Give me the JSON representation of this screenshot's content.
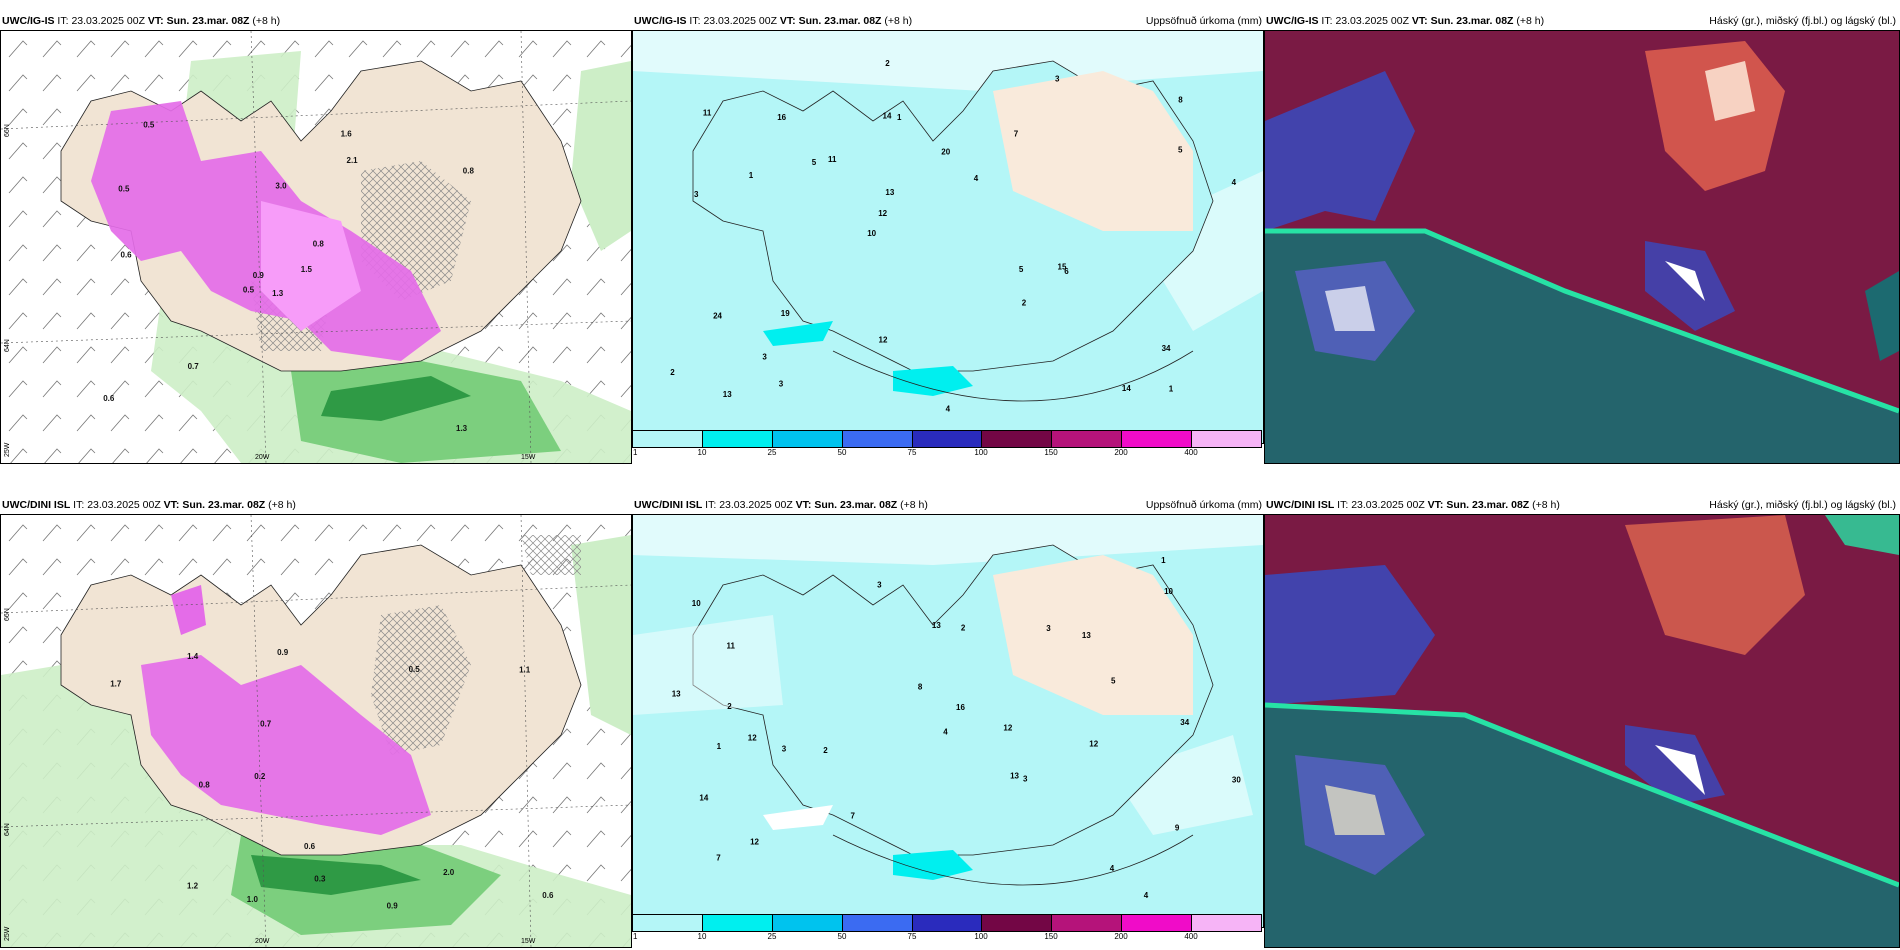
{
  "rows": [
    {
      "model": "UWC/IG-IS",
      "it_label": "IT:",
      "it_value": "23.03.2025 00Z",
      "vt_label": "VT:",
      "vt_value": "Sun. 23.mar. 08Z",
      "lead": "(+8 h)",
      "top": 12
    },
    {
      "model": "UWC/DINI ISL",
      "it_label": "IT:",
      "it_value": "23.03.2025 00Z",
      "vt_label": "VT:",
      "vt_value": "Sun. 23.mar. 08Z",
      "lead": "(+8 h)",
      "top": 496
    }
  ],
  "precip_title": "Uppsöfnuð úrkoma (mm)",
  "cloud_title": "Háský (gr.), miðský (fj.bl.) og lágský (bl.)",
  "legend": {
    "colors": [
      "#b4f6f7",
      "#00efef",
      "#00c3ee",
      "#3b6bf2",
      "#2a2bbd",
      "#730645",
      "#b5137a",
      "#f00cc8",
      "#f6b4f6"
    ],
    "labels": [
      "1",
      "10",
      "25",
      "50",
      "75",
      "100",
      "150",
      "200",
      "400"
    ]
  },
  "axis_labels": {
    "lat66": "66N",
    "lat64": "64N",
    "lon25": "25W",
    "lon20": "20W",
    "lon15": "15W"
  },
  "precip_numbers_top": [
    "1",
    "3",
    "8",
    "10",
    "7",
    "13",
    "14",
    "20",
    "24",
    "11",
    "2",
    "3",
    "1",
    "4",
    "6",
    "11",
    "2",
    "4",
    "5",
    "5",
    "12",
    "12",
    "13",
    "16",
    "3",
    "19",
    "14",
    "34",
    "15",
    "4",
    "5",
    "1",
    "2",
    "3"
  ],
  "precip_numbers_bottom": [
    "4",
    "12",
    "13",
    "10",
    "9",
    "11",
    "12",
    "2",
    "13",
    "13",
    "3",
    "4",
    "7",
    "3",
    "12",
    "14",
    "12",
    "16",
    "13",
    "7",
    "1",
    "2",
    "5",
    "30",
    "34",
    "2",
    "3",
    "4",
    "8",
    "10",
    "3",
    "1"
  ],
  "snow_numbers_top": [
    "1.3",
    "0.5",
    "0.9",
    "0.6",
    "0.8",
    "0.7",
    "1.6",
    "3.0",
    "2.1",
    "1.5",
    "0.5",
    "1.3",
    "0.6",
    "0.8",
    "0.5"
  ],
  "snow_numbers_bottom": [
    "1.0",
    "0.9",
    "1.2",
    "2.0",
    "1.4",
    "1.7",
    "0.8",
    "0.6",
    "0.9",
    "0.7",
    "1.1",
    "0.3",
    "0.2",
    "0.6",
    "0.5"
  ]
}
